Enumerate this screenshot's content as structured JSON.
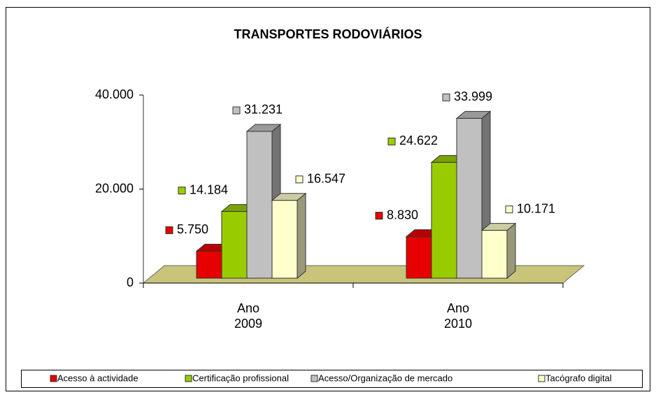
{
  "chart_data": {
    "type": "bar3d",
    "title": "TRANSPORTES RODOVIÁRIOS",
    "categories": [
      "Ano 2009",
      "Ano 2010"
    ],
    "series": [
      {
        "name": "Acesso à actividade",
        "color": "#e60000",
        "values": [
          5750,
          8830
        ],
        "value_labels": [
          "5.750",
          "8.830"
        ]
      },
      {
        "name": "Certificação profissional",
        "color": "#99cc00",
        "values": [
          14184,
          24622
        ],
        "value_labels": [
          "14.184",
          "24.622"
        ]
      },
      {
        "name": "Acesso/Organização de mercado",
        "color": "#c0c0c0",
        "values": [
          31231,
          33999
        ],
        "value_labels": [
          "31.231",
          "33.999"
        ]
      },
      {
        "name": "Tacógrafo digital",
        "color": "#ffffcc",
        "values": [
          16547,
          10171
        ],
        "value_labels": [
          "16.547",
          "10.171"
        ]
      }
    ],
    "ylim": [
      0,
      40000
    ],
    "yticks": [
      0,
      {
        "value": 20000,
        "label": "20.000"
      },
      {
        "value": 40000,
        "label": "40.000"
      }
    ],
    "floor_color": "#c8c47a"
  }
}
